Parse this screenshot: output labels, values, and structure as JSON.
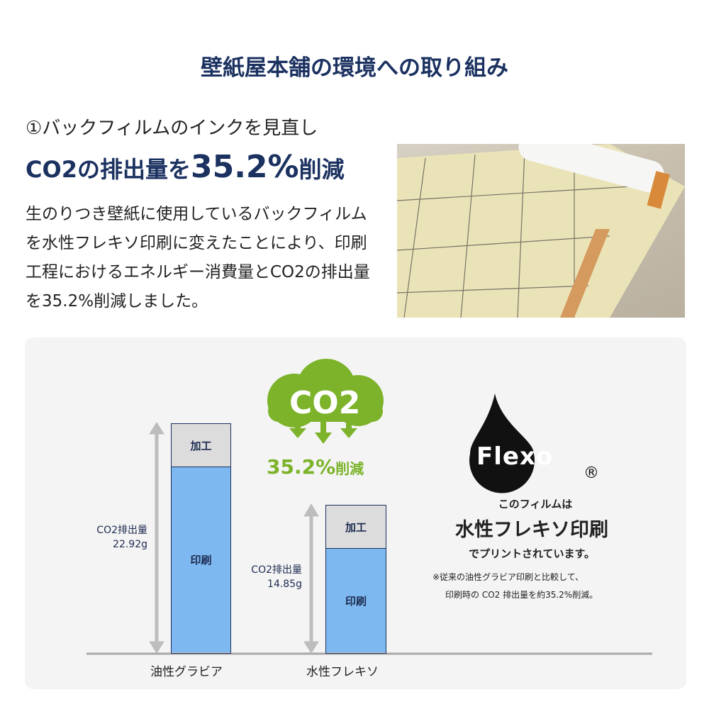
{
  "title": "壁紙屋本舗の環境への取り組み",
  "section": {
    "subtitle": "①バックフィルムのインクを見直し",
    "headline_pre": "CO2の排出量を",
    "headline_value": "35.2%",
    "headline_post": "削減",
    "body": "生のりつき壁紙に使用しているバックフィルムを水性フレキソ印刷に変えたことにより、印刷工程におけるエネルギー消費量とCO2の排出量を35.2%削減しました。"
  },
  "comparison": {
    "cloud_text": "CO2",
    "reduction": "35.2%",
    "reduction_suffix": "削減",
    "bars": [
      {
        "category": "油性グラビア",
        "total_label": "CO2排出量",
        "total_value": "22.92g",
        "top": "加工",
        "bottom": "印刷"
      },
      {
        "category": "水性フレキソ",
        "total_label": "CO2排出量",
        "total_value": "14.85g",
        "top": "加工",
        "bottom": "印刷"
      }
    ],
    "colors": {
      "print": "#7db8f0",
      "process": "#dcdcdc",
      "green": "#7cb32a",
      "navy": "#1b3160"
    }
  },
  "flexo": {
    "logo": "Flexo",
    "registered": "®",
    "line1": "このフィルムは",
    "line2": "水性フレキソ印刷",
    "line3": "でプリントされています。",
    "note1": "※従来の油性グラビア印刷と比較して、",
    "note2": "印刷時の CO2 排出量を約35.2%削減。"
  }
}
